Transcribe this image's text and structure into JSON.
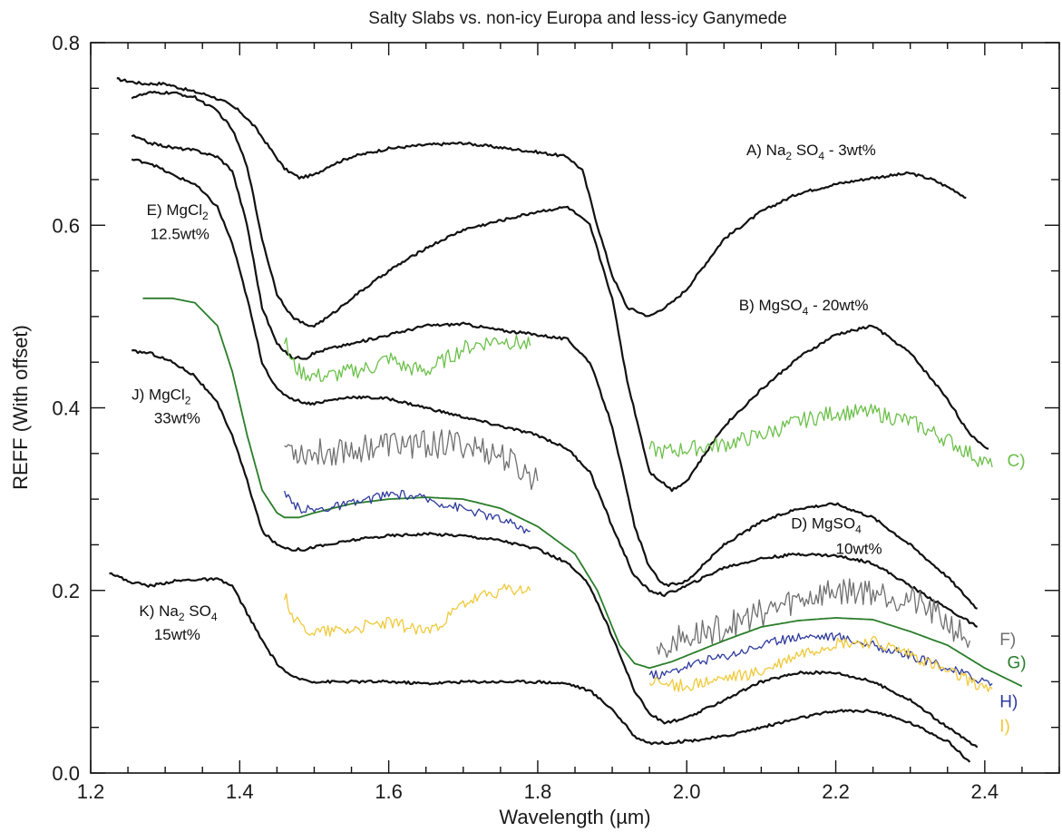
{
  "chart_data": {
    "type": "line",
    "title": "Salty Slabs vs. non-icy Europa and less-icy Ganymede",
    "xlabel": "Wavelength (µm)",
    "ylabel": "REFF (With offset)",
    "xlim": [
      1.2,
      2.5
    ],
    "ylim": [
      0.0,
      0.8
    ],
    "x_ticks": [
      "1.2",
      "1.4",
      "1.6",
      "1.8",
      "2.0",
      "2.2",
      "2.4"
    ],
    "y_ticks": [
      "0.0",
      "0.2",
      "0.4",
      "0.6",
      "0.8"
    ],
    "grid": false,
    "colors": {
      "lab": "#111111",
      "green_light": "#6cc04a",
      "grey": "#707070",
      "green_dark": "#2a7d2a",
      "blue": "#2e3a9c",
      "yellow": "#f0c93a"
    },
    "annotations": [
      {
        "id": "A",
        "text": "A) Na",
        "sub": "2",
        "text2": "SO",
        "sub2": "4",
        "text3": "- 3wt%",
        "x": 2.08,
        "y": 0.677,
        "color": "#111111"
      },
      {
        "id": "B",
        "text": "B) MgSO",
        "sub": "4",
        "text2": "- 20wt%",
        "x": 2.07,
        "y": 0.507,
        "color": "#111111"
      },
      {
        "id": "C",
        "text": "C)",
        "x": 2.43,
        "y": 0.336,
        "color": "#6cc04a"
      },
      {
        "id": "D",
        "text": "D) MgSO",
        "sub": "4",
        "x": 2.14,
        "y": 0.268,
        "color": "#111111",
        "line2": "10wt%",
        "x2": 2.2,
        "y2": 0.24
      },
      {
        "id": "E",
        "text": "E) MgCl",
        "sub": "2",
        "x": 1.275,
        "y": 0.611,
        "color": "#111111",
        "line2": "12.5wt%",
        "x2": 1.28,
        "y2": 0.585
      },
      {
        "id": "F",
        "text": "F)",
        "x": 2.42,
        "y": 0.14,
        "color": "#707070"
      },
      {
        "id": "G",
        "text": "G)",
        "x": 2.43,
        "y": 0.115,
        "color": "#2a7d2a"
      },
      {
        "id": "H",
        "text": "H)",
        "x": 2.42,
        "y": 0.072,
        "color": "#2e3a9c"
      },
      {
        "id": "I",
        "text": "I)",
        "x": 2.42,
        "y": 0.045,
        "color": "#f0c93a"
      },
      {
        "id": "J",
        "text": "J) MgCl",
        "sub": "2",
        "x": 1.255,
        "y": 0.409,
        "color": "#111111",
        "line2": "33wt%",
        "x2": 1.285,
        "y2": 0.383
      },
      {
        "id": "K",
        "text": "K) Na",
        "sub": "2",
        "text2": "SO",
        "sub2": "4",
        "x": 1.265,
        "y": 0.172,
        "color": "#111111",
        "line2": "15wt%",
        "x2": 1.285,
        "y2": 0.146
      }
    ],
    "series": [
      {
        "id": "A",
        "color": "#111111",
        "width": 2.2,
        "noise": 0.0015,
        "x": [
          1.235,
          1.27,
          1.3,
          1.33,
          1.36,
          1.38,
          1.4,
          1.42,
          1.44,
          1.46,
          1.48,
          1.5,
          1.52,
          1.55,
          1.6,
          1.65,
          1.7,
          1.75,
          1.8,
          1.84,
          1.86,
          1.88,
          1.9,
          1.92,
          1.95,
          1.98,
          2.0,
          2.05,
          2.1,
          2.15,
          2.2,
          2.25,
          2.3,
          2.33,
          2.36,
          2.375
        ],
        "y": [
          0.76,
          0.755,
          0.755,
          0.748,
          0.742,
          0.735,
          0.725,
          0.708,
          0.685,
          0.662,
          0.652,
          0.655,
          0.665,
          0.675,
          0.684,
          0.688,
          0.69,
          0.685,
          0.68,
          0.675,
          0.66,
          0.6,
          0.545,
          0.51,
          0.5,
          0.515,
          0.53,
          0.585,
          0.615,
          0.635,
          0.645,
          0.652,
          0.657,
          0.65,
          0.638,
          0.63
        ]
      },
      {
        "id": "B",
        "color": "#111111",
        "width": 2.2,
        "noise": 0.0015,
        "x": [
          1.255,
          1.28,
          1.31,
          1.34,
          1.37,
          1.39,
          1.41,
          1.43,
          1.45,
          1.47,
          1.49,
          1.5,
          1.52,
          1.55,
          1.6,
          1.65,
          1.7,
          1.75,
          1.8,
          1.84,
          1.87,
          1.9,
          1.92,
          1.95,
          1.98,
          2.0,
          2.05,
          2.1,
          2.15,
          2.2,
          2.25,
          2.3,
          2.35,
          2.38,
          2.405
        ],
        "y": [
          0.74,
          0.745,
          0.745,
          0.74,
          0.725,
          0.705,
          0.665,
          0.585,
          0.525,
          0.5,
          0.49,
          0.49,
          0.5,
          0.52,
          0.55,
          0.575,
          0.595,
          0.605,
          0.615,
          0.62,
          0.6,
          0.52,
          0.43,
          0.33,
          0.31,
          0.32,
          0.38,
          0.42,
          0.455,
          0.48,
          0.49,
          0.46,
          0.41,
          0.37,
          0.355
        ]
      },
      {
        "id": "E",
        "color": "#111111",
        "width": 2.2,
        "noise": 0.0015,
        "x": [
          1.255,
          1.28,
          1.31,
          1.34,
          1.37,
          1.39,
          1.41,
          1.43,
          1.45,
          1.47,
          1.49,
          1.5,
          1.52,
          1.55,
          1.6,
          1.65,
          1.7,
          1.75,
          1.8,
          1.84,
          1.87,
          1.9,
          1.93,
          1.95,
          1.97,
          2.0,
          2.05,
          2.1,
          2.15,
          2.2,
          2.25,
          2.3,
          2.35,
          2.39
        ],
        "y": [
          0.698,
          0.69,
          0.685,
          0.682,
          0.675,
          0.66,
          0.6,
          0.51,
          0.47,
          0.455,
          0.455,
          0.46,
          0.465,
          0.47,
          0.48,
          0.49,
          0.492,
          0.485,
          0.48,
          0.475,
          0.45,
          0.38,
          0.27,
          0.225,
          0.205,
          0.21,
          0.25,
          0.275,
          0.29,
          0.295,
          0.28,
          0.25,
          0.215,
          0.18
        ]
      },
      {
        "id": "J",
        "color": "#111111",
        "width": 2.2,
        "noise": 0.0015,
        "x": [
          1.255,
          1.28,
          1.31,
          1.34,
          1.37,
          1.39,
          1.41,
          1.43,
          1.45,
          1.47,
          1.49,
          1.5,
          1.52,
          1.55,
          1.6,
          1.65,
          1.7,
          1.75,
          1.8,
          1.84,
          1.87,
          1.9,
          1.93,
          1.95,
          1.97,
          2.0,
          2.05,
          2.1,
          2.15,
          2.2,
          2.25,
          2.3,
          2.35,
          2.39
        ],
        "y": [
          0.672,
          0.668,
          0.655,
          0.645,
          0.62,
          0.58,
          0.52,
          0.45,
          0.42,
          0.41,
          0.405,
          0.405,
          0.408,
          0.412,
          0.41,
          0.4,
          0.39,
          0.38,
          0.37,
          0.355,
          0.33,
          0.27,
          0.215,
          0.2,
          0.195,
          0.205,
          0.225,
          0.235,
          0.24,
          0.238,
          0.23,
          0.205,
          0.18,
          0.16
        ]
      },
      {
        "id": "D",
        "color": "#111111",
        "width": 2.2,
        "noise": 0.0015,
        "x": [
          1.255,
          1.28,
          1.31,
          1.34,
          1.37,
          1.39,
          1.41,
          1.43,
          1.45,
          1.47,
          1.49,
          1.5,
          1.52,
          1.55,
          1.6,
          1.65,
          1.7,
          1.75,
          1.8,
          1.84,
          1.87,
          1.9,
          1.93,
          1.95,
          1.97,
          2.0,
          2.05,
          2.1,
          2.15,
          2.2,
          2.25,
          2.3,
          2.35,
          2.39
        ],
        "y": [
          0.462,
          0.46,
          0.45,
          0.435,
          0.405,
          0.37,
          0.32,
          0.265,
          0.25,
          0.245,
          0.245,
          0.248,
          0.25,
          0.255,
          0.26,
          0.262,
          0.26,
          0.255,
          0.245,
          0.23,
          0.205,
          0.15,
          0.09,
          0.065,
          0.055,
          0.06,
          0.08,
          0.1,
          0.11,
          0.11,
          0.1,
          0.08,
          0.05,
          0.028
        ]
      },
      {
        "id": "K",
        "color": "#111111",
        "width": 2.2,
        "noise": 0.0015,
        "x": [
          1.225,
          1.25,
          1.28,
          1.31,
          1.34,
          1.37,
          1.39,
          1.41,
          1.43,
          1.45,
          1.47,
          1.5,
          1.55,
          1.6,
          1.65,
          1.7,
          1.75,
          1.8,
          1.84,
          1.87,
          1.9,
          1.93,
          1.95,
          1.97,
          2.0,
          2.05,
          2.1,
          2.15,
          2.2,
          2.25,
          2.3,
          2.35,
          2.38
        ],
        "y": [
          0.22,
          0.21,
          0.205,
          0.21,
          0.212,
          0.212,
          0.205,
          0.175,
          0.145,
          0.12,
          0.105,
          0.1,
          0.1,
          0.1,
          0.098,
          0.1,
          0.1,
          0.1,
          0.098,
          0.09,
          0.07,
          0.04,
          0.033,
          0.033,
          0.035,
          0.04,
          0.05,
          0.06,
          0.068,
          0.068,
          0.055,
          0.035,
          0.012
        ]
      },
      {
        "id": "C",
        "color": "#6cc04a",
        "width": 1.3,
        "noise": 0.009,
        "x": [
          1.46,
          1.47,
          1.48,
          1.5,
          1.52,
          1.55,
          1.58,
          1.6,
          1.62,
          1.65,
          1.68,
          1.7,
          1.72,
          1.75,
          1.79,
          1.95,
          1.97,
          2.0,
          2.05,
          2.1,
          2.15,
          2.2,
          2.25,
          2.3,
          2.35,
          2.38,
          2.41
        ],
        "y": [
          0.475,
          0.45,
          0.44,
          0.435,
          0.435,
          0.44,
          0.445,
          0.455,
          0.445,
          0.44,
          0.455,
          0.465,
          0.47,
          0.475,
          0.468,
          0.355,
          0.352,
          0.355,
          0.36,
          0.37,
          0.385,
          0.395,
          0.395,
          0.385,
          0.365,
          0.35,
          0.335
        ]
      },
      {
        "id": "F",
        "color": "#707070",
        "width": 1.3,
        "noise": 0.016,
        "x": [
          1.46,
          1.47,
          1.48,
          1.5,
          1.55,
          1.6,
          1.65,
          1.7,
          1.75,
          1.78,
          1.8,
          1.96,
          2.0,
          2.05,
          2.1,
          2.15,
          2.2,
          2.25,
          2.3,
          2.35,
          2.38
        ],
        "y": [
          0.36,
          0.355,
          0.352,
          0.35,
          0.355,
          0.36,
          0.36,
          0.36,
          0.348,
          0.33,
          0.32,
          0.14,
          0.148,
          0.16,
          0.175,
          0.19,
          0.2,
          0.2,
          0.19,
          0.165,
          0.145
        ]
      },
      {
        "id": "G",
        "color": "#2a7d2a",
        "width": 1.8,
        "noise": 0.0,
        "x": [
          1.27,
          1.31,
          1.34,
          1.37,
          1.39,
          1.41,
          1.43,
          1.45,
          1.46,
          1.48,
          1.5,
          1.55,
          1.6,
          1.65,
          1.7,
          1.75,
          1.8,
          1.85,
          1.88,
          1.91,
          1.93,
          1.95,
          1.98,
          2.05,
          2.1,
          2.15,
          2.2,
          2.25,
          2.3,
          2.35,
          2.4,
          2.45
        ],
        "y": [
          0.52,
          0.52,
          0.515,
          0.49,
          0.44,
          0.37,
          0.31,
          0.285,
          0.28,
          0.28,
          0.285,
          0.295,
          0.3,
          0.302,
          0.3,
          0.29,
          0.27,
          0.24,
          0.2,
          0.14,
          0.12,
          0.115,
          0.122,
          0.145,
          0.16,
          0.167,
          0.17,
          0.168,
          0.155,
          0.14,
          0.115,
          0.095
        ]
      },
      {
        "id": "H",
        "color": "#2e3a9c",
        "width": 1.3,
        "noise": 0.005,
        "x": [
          1.46,
          1.47,
          1.48,
          1.5,
          1.55,
          1.6,
          1.62,
          1.65,
          1.7,
          1.75,
          1.79,
          1.95,
          1.97,
          2.0,
          2.05,
          2.1,
          2.15,
          2.2,
          2.25,
          2.3,
          2.35,
          2.41
        ],
        "y": [
          0.305,
          0.295,
          0.29,
          0.288,
          0.295,
          0.305,
          0.305,
          0.3,
          0.29,
          0.278,
          0.265,
          0.108,
          0.108,
          0.118,
          0.128,
          0.14,
          0.15,
          0.15,
          0.14,
          0.128,
          0.115,
          0.098
        ]
      },
      {
        "id": "I",
        "color": "#f0c93a",
        "width": 1.3,
        "noise": 0.007,
        "x": [
          1.46,
          1.47,
          1.48,
          1.5,
          1.55,
          1.6,
          1.65,
          1.68,
          1.7,
          1.75,
          1.79,
          1.95,
          1.97,
          2.0,
          2.05,
          2.1,
          2.15,
          2.2,
          2.25,
          2.3,
          2.35,
          2.41
        ],
        "y": [
          0.195,
          0.175,
          0.162,
          0.155,
          0.158,
          0.165,
          0.155,
          0.17,
          0.185,
          0.2,
          0.2,
          0.1,
          0.098,
          0.095,
          0.103,
          0.11,
          0.13,
          0.142,
          0.143,
          0.13,
          0.11,
          0.092
        ]
      }
    ]
  }
}
